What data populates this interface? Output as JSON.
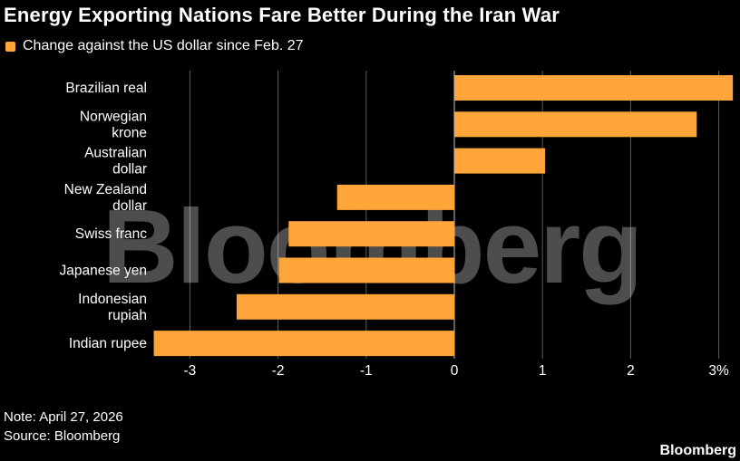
{
  "header": {
    "title": "Energy Exporting Nations Fare Better During the Iran War"
  },
  "legend": {
    "label": "Change against the US dollar since Feb. 27",
    "color": "#ffa53a"
  },
  "footer": {
    "note": "Note: April 27, 2026",
    "source": "Source: Bloomberg",
    "brand": "Bloomberg"
  },
  "watermark": "Bloomberg",
  "chart_data": {
    "type": "bar",
    "orientation": "horizontal",
    "categories": [
      "Brazilian real",
      "Norwegian krone",
      "Australian dollar",
      "New Zealand dollar",
      "Swiss franc",
      "Japanese yen",
      "Indonesian rupiah",
      "Indian rupee"
    ],
    "series": [
      {
        "name": "Change against the US dollar since Feb. 27",
        "values": [
          3.16,
          2.75,
          1.03,
          -1.33,
          -1.88,
          -1.99,
          -2.47,
          -3.41
        ],
        "color": "#ffa53a"
      }
    ],
    "xlim": [
      -3.5,
      3.2
    ],
    "xticks": [
      -3,
      -2,
      -1,
      0,
      1,
      2,
      3
    ],
    "xtick_labels": [
      "-3",
      "-2",
      "-1",
      "0",
      "1",
      "2",
      "3%"
    ],
    "grid": true
  }
}
